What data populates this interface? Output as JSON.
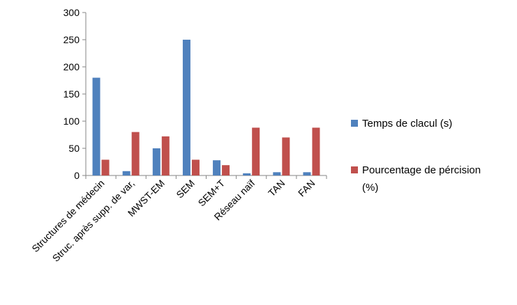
{
  "chart_data": {
    "type": "bar",
    "categories": [
      "Structures de médecin",
      "Struc. après supp. de var,",
      "MWST-EM",
      "SEM",
      "SEM+T",
      "Réseau naïf",
      "TAN",
      "FAN"
    ],
    "series": [
      {
        "name": "Temps de clacul (s)",
        "color": "#4f81bd",
        "values": [
          180,
          8,
          50,
          250,
          28,
          4,
          6,
          6
        ]
      },
      {
        "name": "Pourcentage de pércision (%)",
        "color": "#c0504d",
        "values": [
          29,
          80,
          72,
          29,
          19,
          88,
          70,
          88
        ]
      }
    ],
    "y_ticks": [
      "0",
      "50",
      "100",
      "150",
      "200",
      "250",
      "300"
    ],
    "ylim": [
      0,
      300
    ],
    "legend": {
      "placement": "right",
      "entries": [
        {
          "text": "Temps de clacul (s)"
        },
        {
          "text": "Pourcentage de pércision",
          "text_line2": "(%)"
        }
      ]
    },
    "title": "",
    "xlabel": "",
    "ylabel": ""
  }
}
